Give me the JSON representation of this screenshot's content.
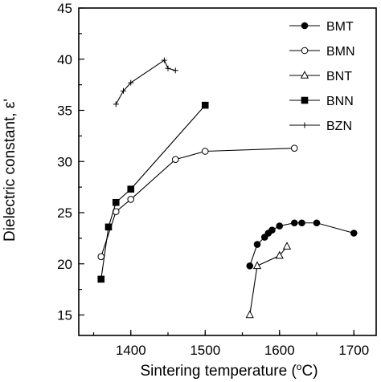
{
  "chart_data": {
    "type": "line",
    "xlabel": "Sintering temperature (",
    "xlabel_unit_sup": "o",
    "xlabel_unit_tail": "C)",
    "ylabel": "Dielectric constant, ε'",
    "xlim": [
      1330,
      1730
    ],
    "ylim": [
      13,
      45
    ],
    "x_ticks": [
      1400,
      1500,
      1600,
      1700
    ],
    "y_ticks": [
      15,
      20,
      25,
      30,
      35,
      40,
      45
    ],
    "legend_position": "top-right",
    "series": [
      {
        "name": "BMT",
        "marker": "filled-circle",
        "x": [
          1560,
          1570,
          1580,
          1585,
          1590,
          1600,
          1620,
          1630,
          1650,
          1700
        ],
        "y": [
          19.8,
          21.9,
          22.6,
          23.0,
          23.3,
          23.7,
          24.0,
          24.0,
          24.0,
          23.0
        ]
      },
      {
        "name": "BMN",
        "marker": "open-circle",
        "x": [
          1360,
          1380,
          1400,
          1460,
          1500,
          1620
        ],
        "y": [
          20.7,
          25.1,
          26.3,
          30.2,
          31.0,
          31.3
        ]
      },
      {
        "name": "BNT",
        "marker": "open-triangle",
        "x": [
          1560,
          1570,
          1600,
          1610
        ],
        "y": [
          15.0,
          19.8,
          20.8,
          21.7
        ]
      },
      {
        "name": "BNN",
        "marker": "filled-square",
        "x": [
          1360,
          1370,
          1380,
          1400,
          1500
        ],
        "y": [
          18.5,
          23.6,
          26.0,
          27.3,
          35.5
        ]
      },
      {
        "name": "BZN",
        "marker": "plus",
        "x": [
          1380,
          1390,
          1400,
          1445,
          1450,
          1460
        ],
        "y": [
          35.6,
          36.9,
          37.7,
          39.9,
          39.1,
          38.9
        ]
      }
    ]
  }
}
